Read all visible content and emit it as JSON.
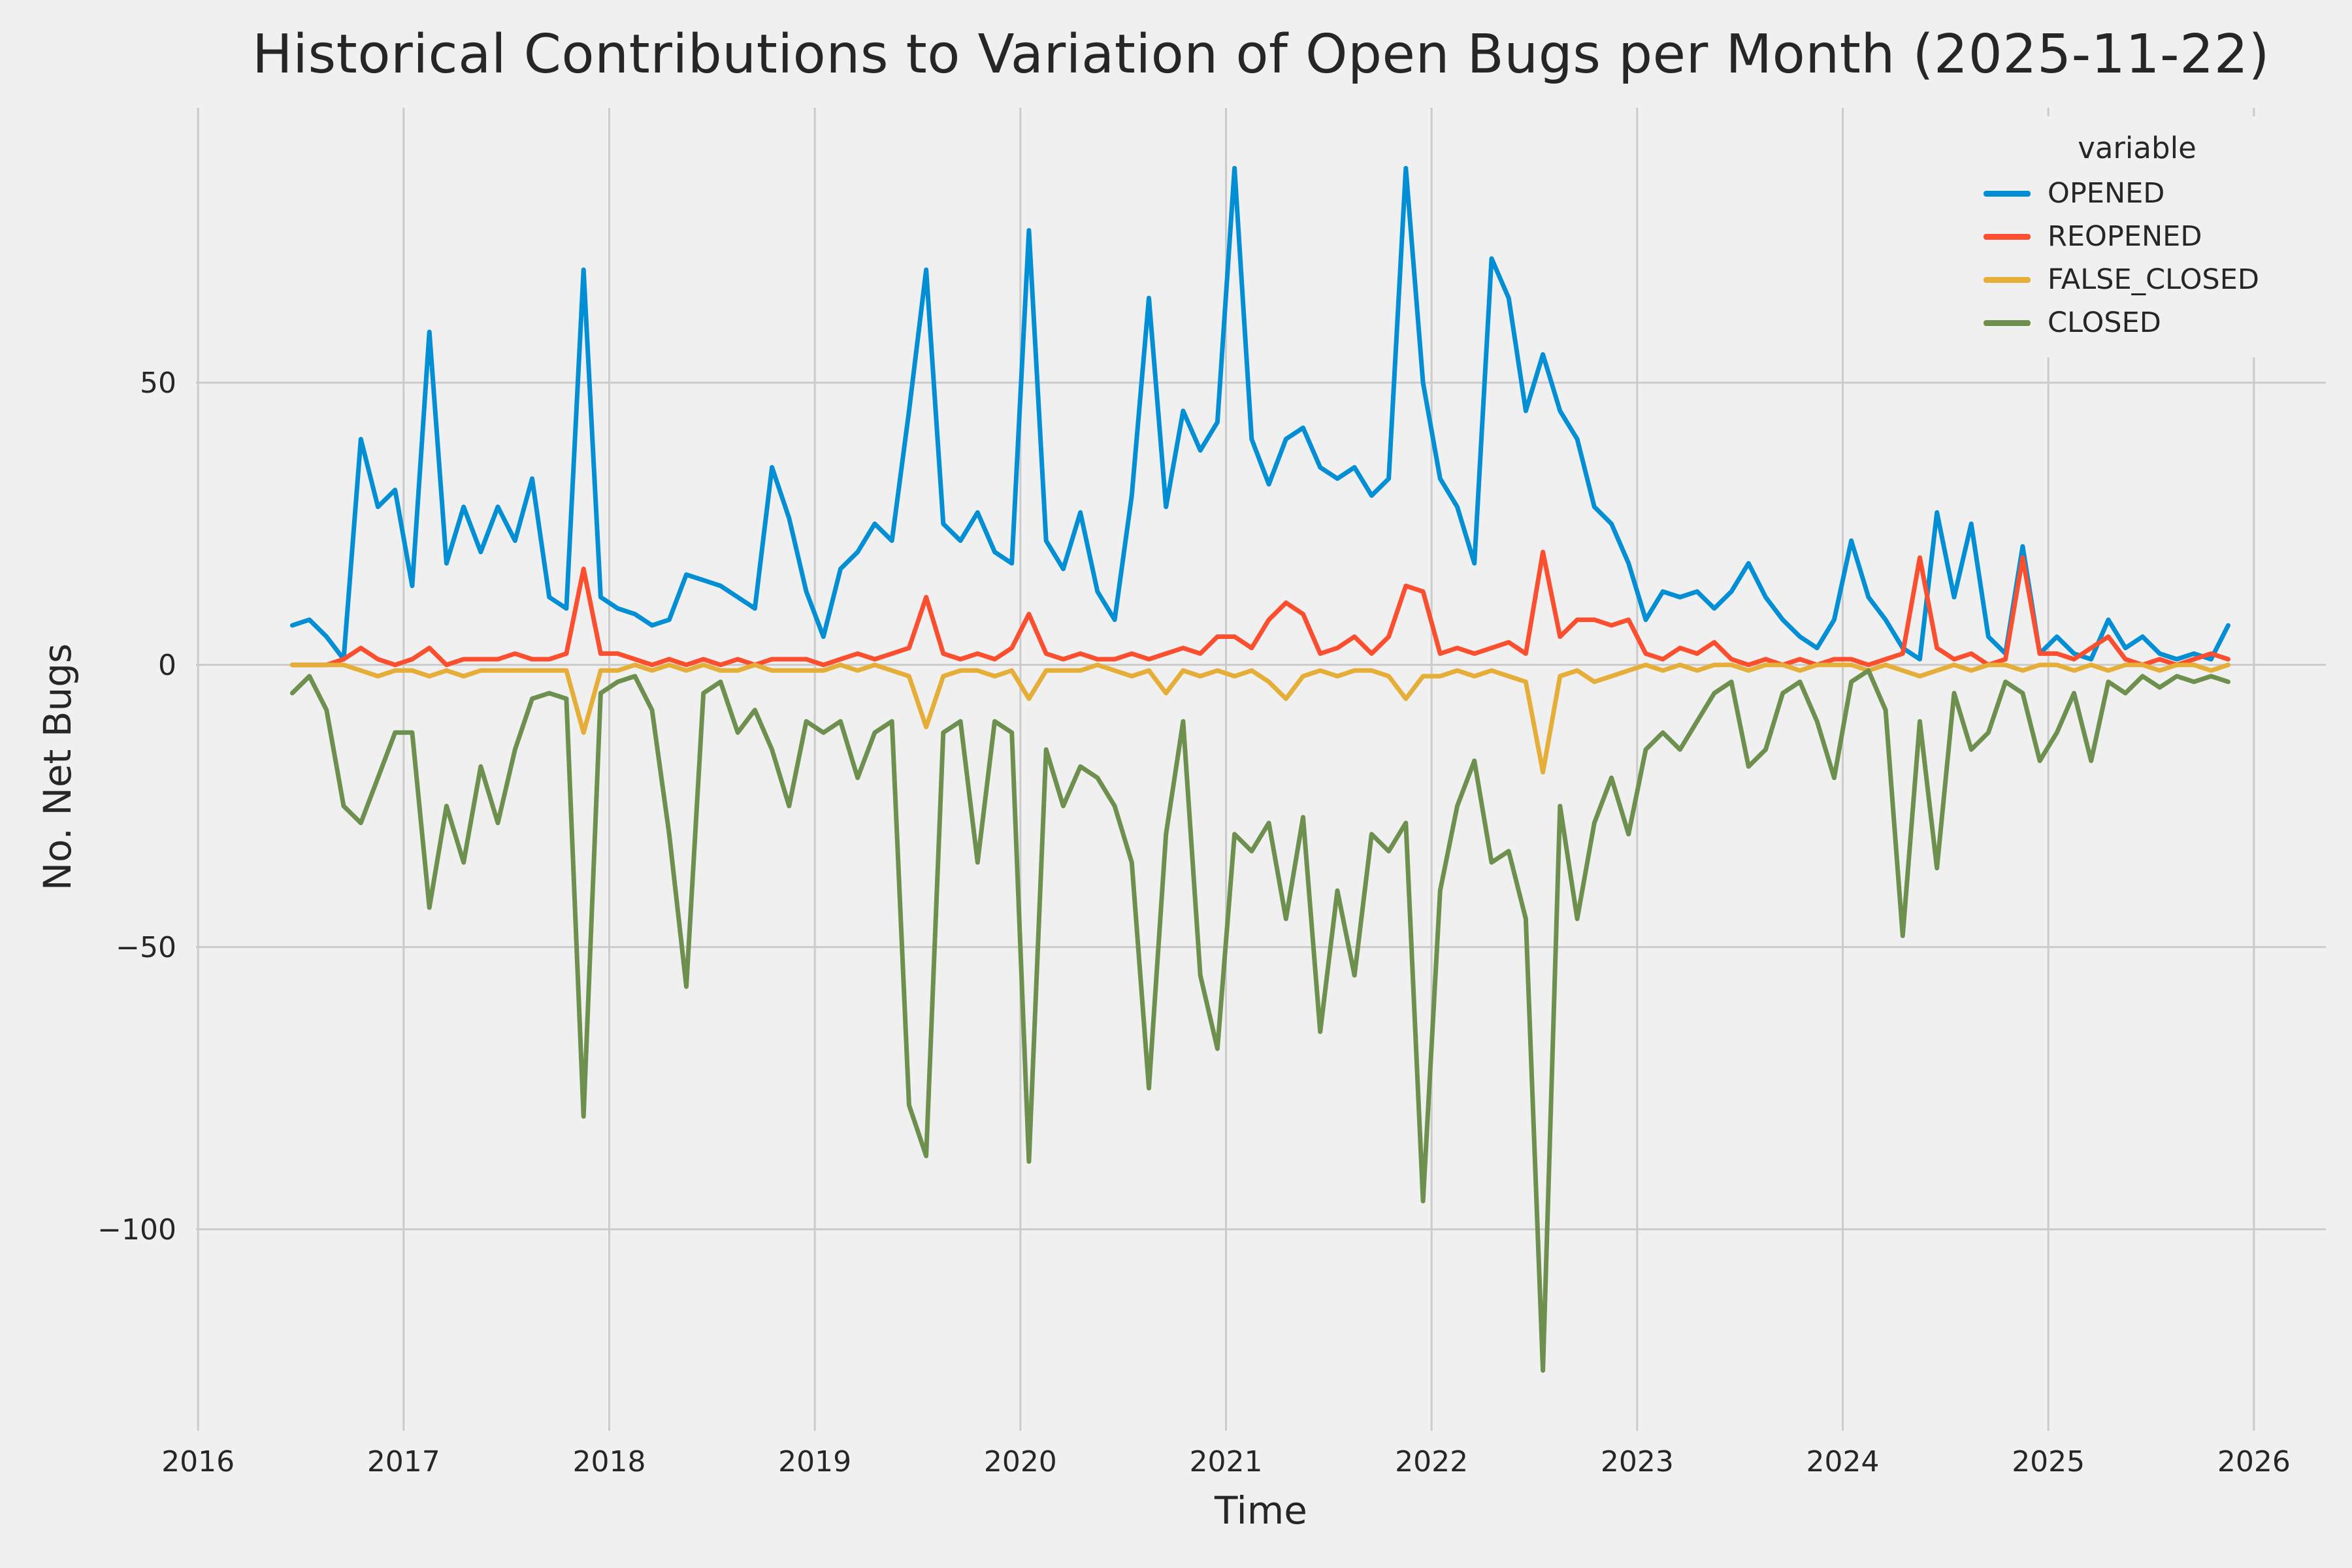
{
  "chart_data": {
    "type": "line",
    "title": "Historical Contributions to Variation of Open Bugs per Month (2025-11-22)",
    "xlabel": "Time",
    "ylabel": "No. Net Bugs",
    "legend_title": "variable",
    "style": {
      "background": "#f0f0f0",
      "grid_color": "#cbcbcb",
      "grid_on": true,
      "legend_position": "top-right",
      "line_width": 7
    },
    "xlim": [
      2015.99,
      2026.35
    ],
    "ylim": [
      -135.7,
      98.7
    ],
    "xticks": [
      2016,
      2017,
      2018,
      2019,
      2020,
      2021,
      2022,
      2023,
      2024,
      2025,
      2026
    ],
    "yticks": [
      50,
      0,
      -50,
      -100
    ],
    "months": [
      "2016-06",
      "2016-07",
      "2016-08",
      "2016-09",
      "2016-10",
      "2016-11",
      "2016-12",
      "2017-01",
      "2017-02",
      "2017-03",
      "2017-04",
      "2017-05",
      "2017-06",
      "2017-07",
      "2017-08",
      "2017-09",
      "2017-10",
      "2017-11",
      "2017-12",
      "2018-01",
      "2018-02",
      "2018-03",
      "2018-04",
      "2018-05",
      "2018-06",
      "2018-07",
      "2018-08",
      "2018-09",
      "2018-10",
      "2018-11",
      "2018-12",
      "2019-01",
      "2019-02",
      "2019-03",
      "2019-04",
      "2019-05",
      "2019-06",
      "2019-07",
      "2019-08",
      "2019-09",
      "2019-10",
      "2019-11",
      "2019-12",
      "2020-01",
      "2020-02",
      "2020-03",
      "2020-04",
      "2020-05",
      "2020-06",
      "2020-07",
      "2020-08",
      "2020-09",
      "2020-10",
      "2020-11",
      "2020-12",
      "2021-01",
      "2021-02",
      "2021-03",
      "2021-04",
      "2021-05",
      "2021-06",
      "2021-07",
      "2021-08",
      "2021-09",
      "2021-10",
      "2021-11",
      "2021-12",
      "2022-01",
      "2022-02",
      "2022-03",
      "2022-04",
      "2022-05",
      "2022-06",
      "2022-07",
      "2022-08",
      "2022-09",
      "2022-10",
      "2022-11",
      "2022-12",
      "2023-01",
      "2023-02",
      "2023-03",
      "2023-04",
      "2023-05",
      "2023-06",
      "2023-07",
      "2023-08",
      "2023-09",
      "2023-10",
      "2023-11",
      "2023-12",
      "2024-01",
      "2024-02",
      "2024-03",
      "2024-04",
      "2024-05",
      "2024-06",
      "2024-07",
      "2024-08",
      "2024-09",
      "2024-10",
      "2024-11",
      "2024-12",
      "2025-01",
      "2025-02",
      "2025-03",
      "2025-04",
      "2025-05",
      "2025-06",
      "2025-07",
      "2025-08",
      "2025-09",
      "2025-10",
      "2025-11"
    ],
    "series": [
      {
        "name": "OPENED",
        "color": "#008fd5",
        "values": [
          7,
          8,
          5,
          1,
          40,
          28,
          31,
          14,
          59,
          18,
          28,
          20,
          28,
          22,
          33,
          12,
          10,
          70,
          12,
          10,
          9,
          7,
          8,
          16,
          15,
          14,
          12,
          10,
          35,
          26,
          13,
          5,
          17,
          20,
          25,
          22,
          45,
          70,
          25,
          22,
          27,
          20,
          18,
          77,
          22,
          17,
          27,
          13,
          8,
          30,
          65,
          28,
          45,
          38,
          43,
          88,
          40,
          32,
          40,
          42,
          35,
          33,
          35,
          30,
          33,
          88,
          50,
          33,
          28,
          18,
          72,
          65,
          45,
          55,
          45,
          40,
          28,
          25,
          18,
          8,
          13,
          12,
          13,
          10,
          13,
          18,
          12,
          8,
          5,
          3,
          8,
          22,
          12,
          8,
          3,
          1,
          27,
          12,
          25,
          5,
          2,
          21,
          2,
          5,
          2,
          1,
          8,
          3,
          5,
          2,
          1,
          2,
          1,
          7
        ]
      },
      {
        "name": "REOPENED",
        "color": "#fc4f30",
        "values": [
          0,
          0,
          0,
          1,
          3,
          1,
          0,
          1,
          3,
          0,
          1,
          1,
          1,
          2,
          1,
          1,
          2,
          17,
          2,
          2,
          1,
          0,
          1,
          0,
          1,
          0,
          1,
          0,
          1,
          1,
          1,
          0,
          1,
          2,
          1,
          2,
          3,
          12,
          2,
          1,
          2,
          1,
          3,
          9,
          2,
          1,
          2,
          1,
          1,
          2,
          1,
          2,
          3,
          2,
          5,
          5,
          3,
          8,
          11,
          9,
          2,
          3,
          5,
          2,
          5,
          14,
          13,
          2,
          3,
          2,
          3,
          4,
          2,
          20,
          5,
          8,
          8,
          7,
          8,
          2,
          1,
          3,
          2,
          4,
          1,
          0,
          1,
          0,
          1,
          0,
          1,
          1,
          0,
          1,
          2,
          19,
          3,
          1,
          2,
          0,
          1,
          19,
          2,
          2,
          1,
          3,
          5,
          1,
          0,
          1,
          0,
          1,
          2,
          1
        ]
      },
      {
        "name": "FALSE_CLOSED",
        "color": "#e5ae38",
        "values": [
          0,
          0,
          0,
          0,
          -1,
          -2,
          -1,
          -1,
          -2,
          -1,
          -2,
          -1,
          -1,
          -1,
          -1,
          -1,
          -1,
          -12,
          -1,
          -1,
          0,
          -1,
          0,
          -1,
          0,
          -1,
          -1,
          0,
          -1,
          -1,
          -1,
          -1,
          0,
          -1,
          0,
          -1,
          -2,
          -11,
          -2,
          -1,
          -1,
          -2,
          -1,
          -6,
          -1,
          -1,
          -1,
          0,
          -1,
          -2,
          -1,
          -5,
          -1,
          -2,
          -1,
          -2,
          -1,
          -3,
          -6,
          -2,
          -1,
          -2,
          -1,
          -1,
          -2,
          -6,
          -2,
          -2,
          -1,
          -2,
          -1,
          -2,
          -3,
          -19,
          -2,
          -1,
          -3,
          -2,
          -1,
          0,
          -1,
          0,
          -1,
          0,
          0,
          -1,
          0,
          0,
          -1,
          0,
          0,
          0,
          -1,
          0,
          -1,
          -2,
          -1,
          0,
          -1,
          0,
          0,
          -1,
          0,
          0,
          -1,
          0,
          -1,
          0,
          0,
          -1,
          0,
          0,
          -1,
          0
        ]
      },
      {
        "name": "CLOSED",
        "color": "#6d904f",
        "values": [
          -5,
          -2,
          -8,
          -25,
          -28,
          -20,
          -12,
          -12,
          -43,
          -25,
          -35,
          -18,
          -28,
          -15,
          -6,
          -5,
          -6,
          -80,
          -5,
          -3,
          -2,
          -8,
          -30,
          -57,
          -5,
          -3,
          -12,
          -8,
          -15,
          -25,
          -10,
          -12,
          -10,
          -20,
          -12,
          -10,
          -78,
          -87,
          -12,
          -10,
          -35,
          -10,
          -12,
          -88,
          -15,
          -25,
          -18,
          -20,
          -25,
          -35,
          -75,
          -30,
          -10,
          -55,
          -68,
          -30,
          -33,
          -28,
          -45,
          -27,
          -65,
          -40,
          -55,
          -30,
          -33,
          -28,
          -95,
          -40,
          -25,
          -17,
          -35,
          -33,
          -45,
          -125,
          -25,
          -45,
          -28,
          -20,
          -30,
          -15,
          -12,
          -15,
          -10,
          -5,
          -3,
          -18,
          -15,
          -5,
          -3,
          -10,
          -20,
          -3,
          -1,
          -8,
          -48,
          -10,
          -36,
          -5,
          -15,
          -12,
          -3,
          -5,
          -17,
          -12,
          -5,
          -17,
          -3,
          -5,
          -2,
          -4,
          -2,
          -3,
          -2,
          -3
        ]
      }
    ]
  }
}
